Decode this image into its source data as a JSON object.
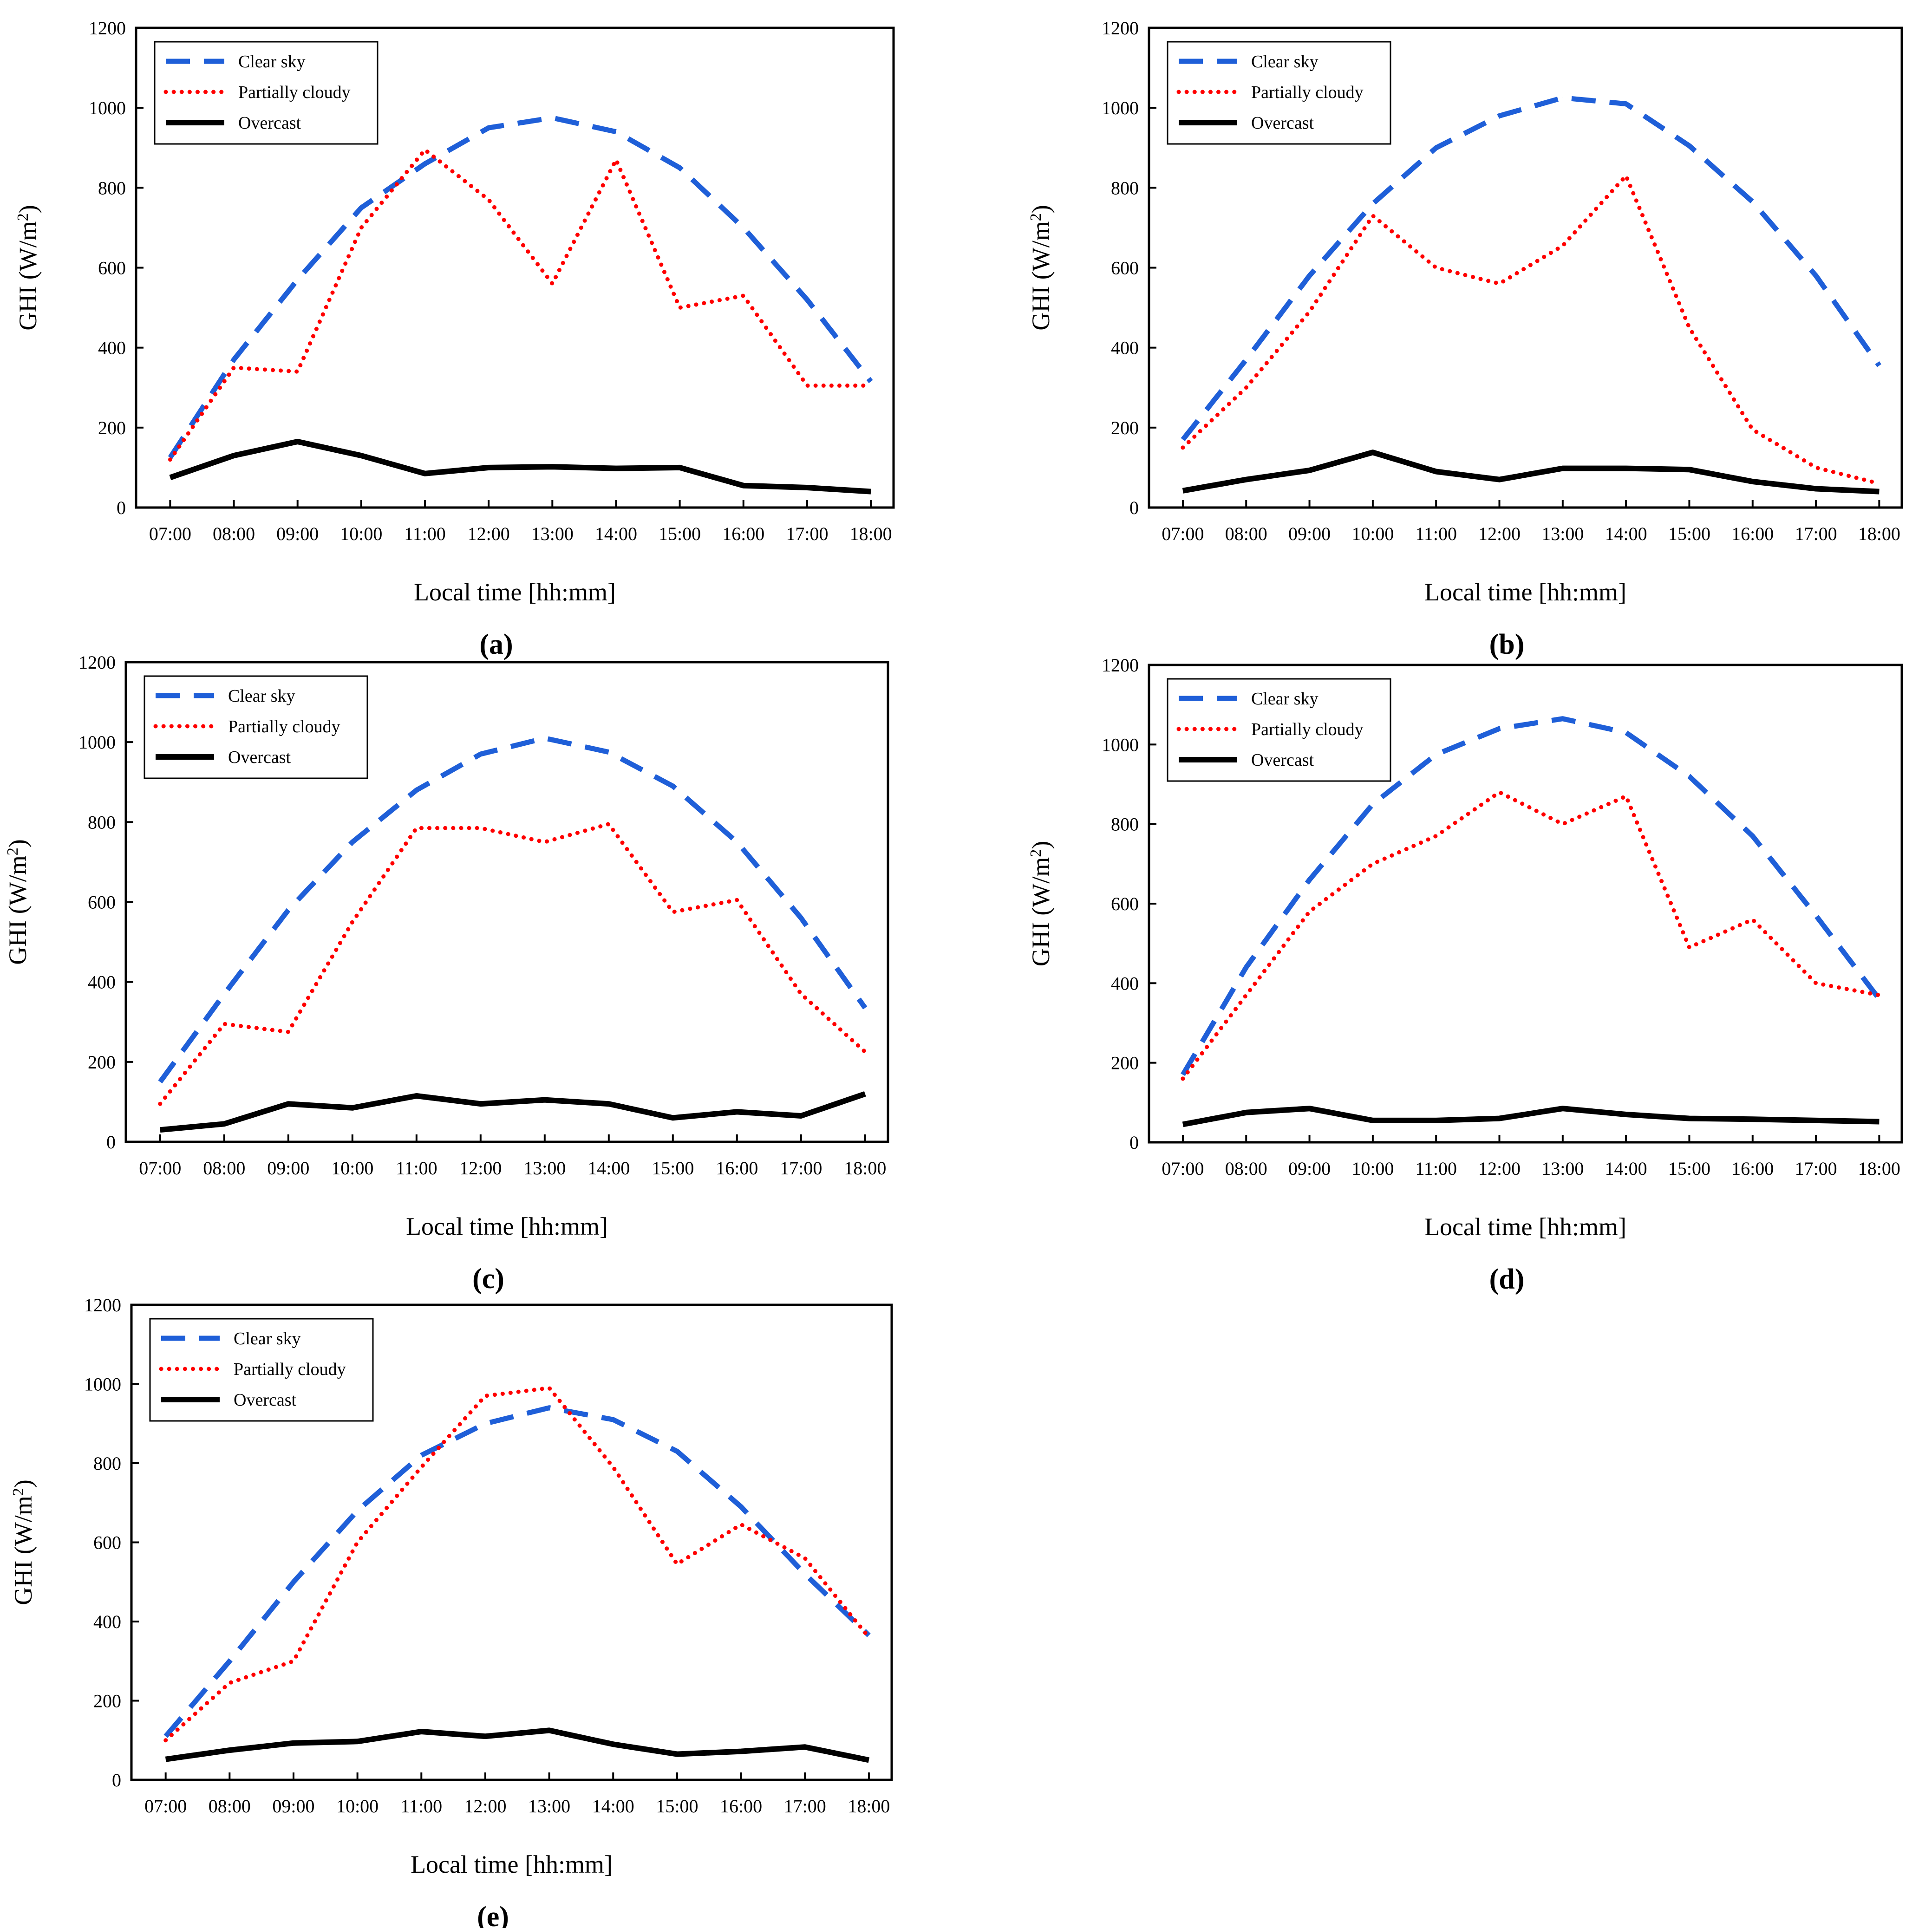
{
  "chart_data": [
    {
      "panel_label": "(a)",
      "type": "line",
      "xlabel": "Local time [hh:mm]",
      "ylabel": "GHI (W/m²)",
      "ylabel_main": "GHI (W/m",
      "ylabel_sup": "2",
      "ylabel_end": ")",
      "ylim": [
        0,
        1200
      ],
      "yticks": [
        0,
        200,
        400,
        600,
        800,
        1000,
        1200
      ],
      "categories": [
        "07:00",
        "08:00",
        "09:00",
        "10:00",
        "11:00",
        "12:00",
        "13:00",
        "14:00",
        "15:00",
        "16:00",
        "17:00",
        "18:00"
      ],
      "series": [
        {
          "name": "Clear sky",
          "color": "#1f5fd8",
          "style": "dashed",
          "values": [
            125,
            370,
            570,
            750,
            860,
            950,
            975,
            940,
            850,
            700,
            520,
            315
          ]
        },
        {
          "name": "Partially cloudy",
          "color": "#ff0000",
          "style": "dotted",
          "values": [
            120,
            350,
            340,
            700,
            895,
            770,
            560,
            870,
            500,
            530,
            305,
            305
          ]
        },
        {
          "name": "Overcast",
          "color": "#000000",
          "style": "solid",
          "values": [
            75,
            130,
            165,
            130,
            85,
            100,
            102,
            98,
            100,
            55,
            50,
            40
          ]
        }
      ]
    },
    {
      "panel_label": "(b)",
      "type": "line",
      "xlabel": "Local time [hh:mm]",
      "ylabel": "GHI (W/m²)",
      "ylabel_main": "GHI (W/m",
      "ylabel_sup": "2",
      "ylabel_end": ")",
      "ylim": [
        0,
        1200
      ],
      "yticks": [
        0,
        200,
        400,
        600,
        800,
        1000,
        1200
      ],
      "categories": [
        "07:00",
        "08:00",
        "09:00",
        "10:00",
        "11:00",
        "12:00",
        "13:00",
        "14:00",
        "15:00",
        "16:00",
        "17:00",
        "18:00"
      ],
      "series": [
        {
          "name": "Clear sky",
          "color": "#1f5fd8",
          "style": "dashed",
          "values": [
            170,
            370,
            580,
            760,
            900,
            980,
            1025,
            1010,
            905,
            765,
            580,
            355
          ]
        },
        {
          "name": "Partially cloudy",
          "color": "#ff0000",
          "style": "dotted",
          "values": [
            150,
            300,
            490,
            730,
            600,
            560,
            655,
            830,
            450,
            195,
            100,
            60
          ]
        },
        {
          "name": "Overcast",
          "color": "#000000",
          "style": "solid",
          "values": [
            42,
            70,
            93,
            138,
            90,
            70,
            98,
            98,
            95,
            65,
            47,
            40
          ]
        }
      ]
    },
    {
      "panel_label": "(c)",
      "type": "line",
      "xlabel": "Local time [hh:mm]",
      "ylabel": "GHI (W/m²)",
      "ylabel_main": "GHI (W/m",
      "ylabel_sup": "2",
      "ylabel_end": ")",
      "ylim": [
        0,
        1200
      ],
      "yticks": [
        0,
        200,
        400,
        600,
        800,
        1000,
        1200
      ],
      "categories": [
        "07:00",
        "08:00",
        "09:00",
        "10:00",
        "11:00",
        "12:00",
        "13:00",
        "14:00",
        "15:00",
        "16:00",
        "17:00",
        "18:00"
      ],
      "series": [
        {
          "name": "Clear sky",
          "color": "#1f5fd8",
          "style": "dashed",
          "values": [
            150,
            370,
            580,
            750,
            880,
            970,
            1010,
            975,
            890,
            750,
            560,
            335
          ]
        },
        {
          "name": "Partially cloudy",
          "color": "#ff0000",
          "style": "dotted",
          "values": [
            95,
            295,
            275,
            550,
            785,
            785,
            750,
            795,
            575,
            605,
            370,
            225
          ]
        },
        {
          "name": "Overcast",
          "color": "#000000",
          "style": "solid",
          "values": [
            30,
            45,
            95,
            85,
            115,
            95,
            105,
            95,
            60,
            75,
            65,
            120
          ]
        }
      ]
    },
    {
      "panel_label": "(d)",
      "type": "line",
      "xlabel": "Local time [hh:mm]",
      "ylabel": "GHI (W/m²)",
      "ylabel_main": "GHI (W/m",
      "ylabel_sup": "2",
      "ylabel_end": ")",
      "ylim": [
        0,
        1200
      ],
      "yticks": [
        0,
        200,
        400,
        600,
        800,
        1000,
        1200
      ],
      "categories": [
        "07:00",
        "08:00",
        "09:00",
        "10:00",
        "11:00",
        "12:00",
        "13:00",
        "14:00",
        "15:00",
        "16:00",
        "17:00",
        "18:00"
      ],
      "series": [
        {
          "name": "Clear sky",
          "color": "#1f5fd8",
          "style": "dashed",
          "values": [
            170,
            440,
            660,
            850,
            975,
            1040,
            1065,
            1030,
            920,
            770,
            570,
            360
          ]
        },
        {
          "name": "Partially cloudy",
          "color": "#ff0000",
          "style": "dotted",
          "values": [
            160,
            370,
            580,
            700,
            770,
            880,
            800,
            870,
            490,
            560,
            400,
            370
          ]
        },
        {
          "name": "Overcast",
          "color": "#000000",
          "style": "solid",
          "values": [
            45,
            75,
            85,
            55,
            55,
            60,
            85,
            70,
            60,
            58,
            55,
            52
          ]
        }
      ]
    },
    {
      "panel_label": "(e)",
      "type": "line",
      "xlabel": "Local time [hh:mm]",
      "ylabel": "GHI (W/m²)",
      "ylabel_main": "GHI (W/m",
      "ylabel_sup": "2",
      "ylabel_end": ")",
      "ylim": [
        0,
        1200
      ],
      "yticks": [
        0,
        200,
        400,
        600,
        800,
        1000,
        1200
      ],
      "categories": [
        "07:00",
        "08:00",
        "09:00",
        "10:00",
        "11:00",
        "12:00",
        "13:00",
        "14:00",
        "15:00",
        "16:00",
        "17:00",
        "18:00"
      ],
      "series": [
        {
          "name": "Clear sky",
          "color": "#1f5fd8",
          "style": "dashed",
          "values": [
            110,
            300,
            500,
            680,
            820,
            900,
            940,
            910,
            830,
            690,
            520,
            365
          ]
        },
        {
          "name": "Partially cloudy",
          "color": "#ff0000",
          "style": "dotted",
          "values": [
            100,
            245,
            300,
            600,
            790,
            970,
            990,
            790,
            545,
            645,
            560,
            360
          ]
        },
        {
          "name": "Overcast",
          "color": "#000000",
          "style": "solid",
          "values": [
            52,
            75,
            93,
            97,
            122,
            110,
            125,
            90,
            65,
            72,
            83,
            50
          ]
        }
      ]
    }
  ]
}
